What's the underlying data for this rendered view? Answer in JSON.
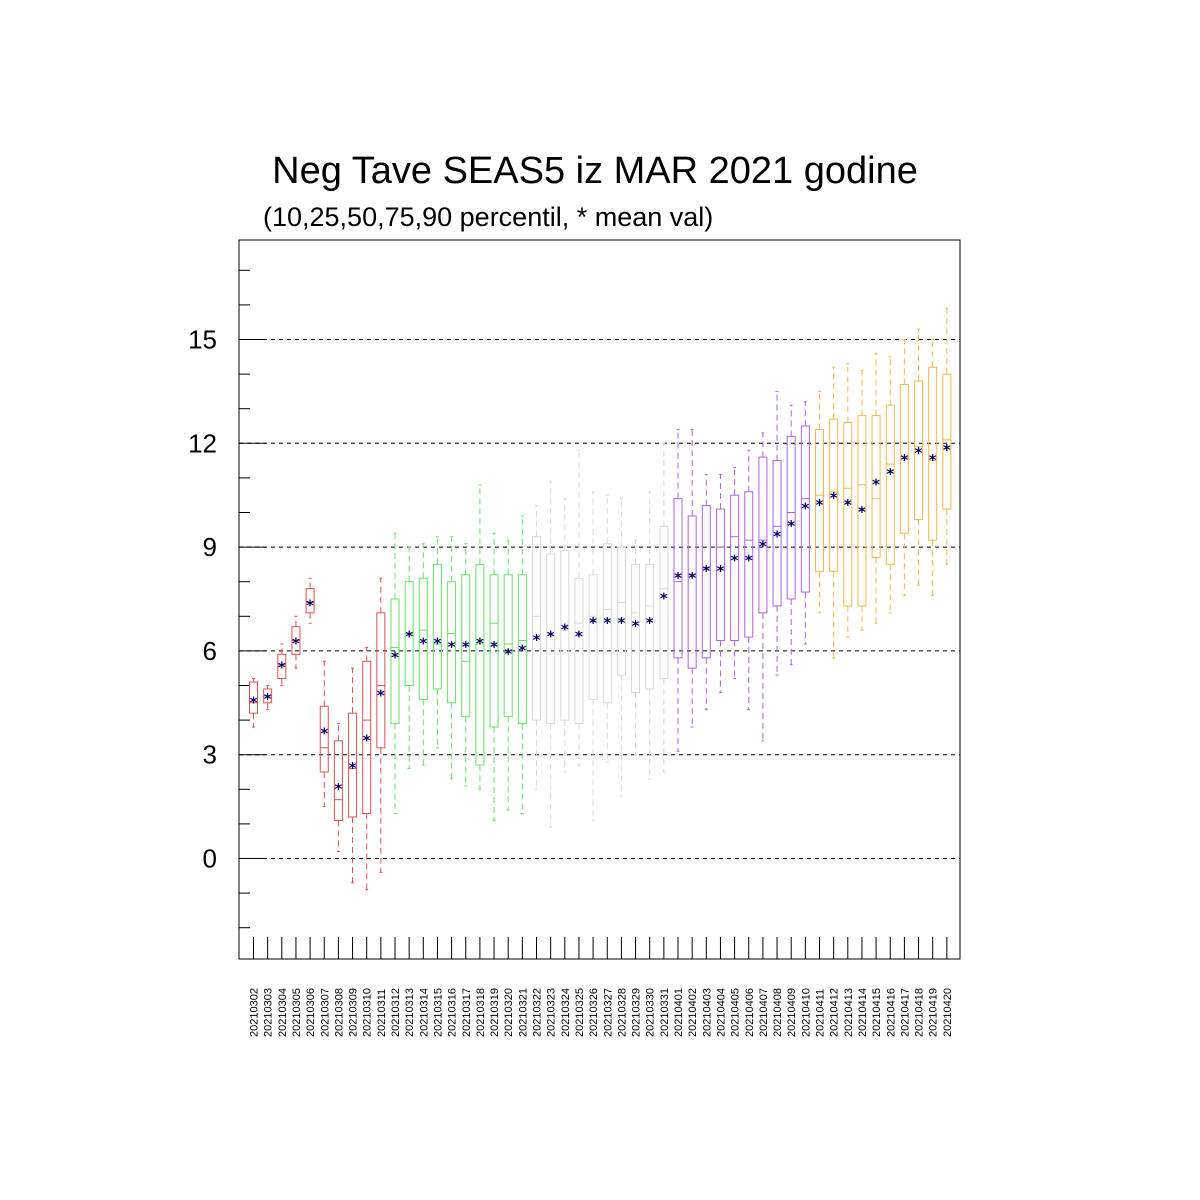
{
  "chart_data": {
    "type": "boxplot",
    "title": "Neg Tave SEAS5 iz MAR 2021 godine",
    "subtitle": "(10,25,50,75,90 percentil, * mean val)",
    "ylim": [
      -2.9,
      17.3
    ],
    "yticks": [
      0,
      3,
      6,
      9,
      12,
      15
    ],
    "grid": "horizontal dashed at major ticks",
    "categories": [
      "20210302",
      "20210303",
      "20210304",
      "20210305",
      "20210306",
      "20210307",
      "20210308",
      "20210309",
      "20210310",
      "20210311",
      "20210312",
      "20210313",
      "20210314",
      "20210315",
      "20210316",
      "20210317",
      "20210318",
      "20210319",
      "20210320",
      "20210321",
      "20210322",
      "20210323",
      "20210324",
      "20210325",
      "20210326",
      "20210327",
      "20210328",
      "20210329",
      "20210330",
      "20210331",
      "20210401",
      "20210402",
      "20210403",
      "20210404",
      "20210405",
      "20210406",
      "20210407",
      "20210408",
      "20210409",
      "20210410",
      "20210411",
      "20210412",
      "20210413",
      "20210414",
      "20210415",
      "20210416",
      "20210417",
      "20210418",
      "20210419",
      "20210420"
    ],
    "boxes": [
      {
        "p10": 3.8,
        "p25": 4.2,
        "p50": 4.5,
        "p75": 5.1,
        "p90": 5.2,
        "mean": 4.6,
        "color": "#e05050"
      },
      {
        "p10": 4.3,
        "p25": 4.5,
        "p50": 4.7,
        "p75": 4.9,
        "p90": 5.0,
        "mean": 4.7,
        "color": "#e05050"
      },
      {
        "p10": 5.0,
        "p25": 5.2,
        "p50": 5.6,
        "p75": 5.9,
        "p90": 6.2,
        "mean": 5.6,
        "color": "#e05050"
      },
      {
        "p10": 5.5,
        "p25": 5.9,
        "p50": 6.3,
        "p75": 6.7,
        "p90": 7.0,
        "mean": 6.3,
        "color": "#e05050"
      },
      {
        "p10": 6.8,
        "p25": 7.1,
        "p50": 7.4,
        "p75": 7.8,
        "p90": 8.1,
        "mean": 7.4,
        "color": "#e05050"
      },
      {
        "p10": 1.5,
        "p25": 2.5,
        "p50": 3.2,
        "p75": 4.4,
        "p90": 5.7,
        "mean": 3.7,
        "color": "#e05050"
      },
      {
        "p10": 0.2,
        "p25": 1.1,
        "p50": 1.7,
        "p75": 3.4,
        "p90": 3.9,
        "mean": 2.1,
        "color": "#e05050"
      },
      {
        "p10": -0.7,
        "p25": 1.2,
        "p50": 2.6,
        "p75": 4.2,
        "p90": 5.5,
        "mean": 2.7,
        "color": "#e05050"
      },
      {
        "p10": -0.9,
        "p25": 1.3,
        "p50": 4.0,
        "p75": 5.7,
        "p90": 6.1,
        "mean": 3.5,
        "color": "#e05050"
      },
      {
        "p10": -0.4,
        "p25": 3.2,
        "p50": 5.0,
        "p75": 7.1,
        "p90": 8.1,
        "mean": 4.8,
        "color": "#e05050"
      },
      {
        "p10": 1.3,
        "p25": 3.9,
        "p50": 6.1,
        "p75": 7.5,
        "p90": 9.4,
        "mean": 5.9,
        "color": "#66e066"
      },
      {
        "p10": 2.6,
        "p25": 5.0,
        "p50": 6.5,
        "p75": 8.0,
        "p90": 9.0,
        "mean": 6.5,
        "color": "#66e066"
      },
      {
        "p10": 2.7,
        "p25": 4.6,
        "p50": 6.6,
        "p75": 8.1,
        "p90": 9.1,
        "mean": 6.3,
        "color": "#66e066"
      },
      {
        "p10": 3.2,
        "p25": 4.9,
        "p50": 6.2,
        "p75": 8.5,
        "p90": 9.3,
        "mean": 6.3,
        "color": "#66e066"
      },
      {
        "p10": 2.3,
        "p25": 4.5,
        "p50": 6.5,
        "p75": 8.0,
        "p90": 9.3,
        "mean": 6.2,
        "color": "#66e066"
      },
      {
        "p10": 2.1,
        "p25": 4.1,
        "p50": 5.7,
        "p75": 8.2,
        "p90": 9.1,
        "mean": 6.2,
        "color": "#66e066"
      },
      {
        "p10": 2.0,
        "p25": 2.7,
        "p50": 6.2,
        "p75": 8.5,
        "p90": 10.8,
        "mean": 6.3,
        "color": "#66e066"
      },
      {
        "p10": 1.1,
        "p25": 3.8,
        "p50": 6.8,
        "p75": 8.2,
        "p90": 9.4,
        "mean": 6.2,
        "color": "#66e066"
      },
      {
        "p10": 1.4,
        "p25": 4.1,
        "p50": 6.2,
        "p75": 8.2,
        "p90": 9.2,
        "mean": 6.0,
        "color": "#66e066"
      },
      {
        "p10": 1.3,
        "p25": 3.9,
        "p50": 6.3,
        "p75": 8.2,
        "p90": 9.9,
        "mean": 6.1,
        "color": "#66e066"
      },
      {
        "p10": 2.0,
        "p25": 4.0,
        "p50": 7.0,
        "p75": 9.3,
        "p90": 10.2,
        "mean": 6.4,
        "color": "#d8d8d8"
      },
      {
        "p10": 0.9,
        "p25": 3.9,
        "p50": 6.5,
        "p75": 8.8,
        "p90": 10.9,
        "mean": 6.5,
        "color": "#d8d8d8"
      },
      {
        "p10": 2.5,
        "p25": 4.0,
        "p50": 6.6,
        "p75": 8.9,
        "p90": 10.4,
        "mean": 6.7,
        "color": "#d8d8d8"
      },
      {
        "p10": 2.7,
        "p25": 3.9,
        "p50": 6.8,
        "p75": 8.1,
        "p90": 11.8,
        "mean": 6.5,
        "color": "#d8d8d8"
      },
      {
        "p10": 1.1,
        "p25": 4.6,
        "p50": 7.0,
        "p75": 8.2,
        "p90": 10.6,
        "mean": 6.9,
        "color": "#d8d8d8"
      },
      {
        "p10": 2.8,
        "p25": 4.5,
        "p50": 7.2,
        "p75": 9.1,
        "p90": 10.5,
        "mean": 6.9,
        "color": "#d8d8d8"
      },
      {
        "p10": 1.8,
        "p25": 5.3,
        "p50": 7.4,
        "p75": 9.0,
        "p90": 10.4,
        "mean": 6.9,
        "color": "#d8d8d8"
      },
      {
        "p10": 3.0,
        "p25": 4.8,
        "p50": 7.1,
        "p75": 8.5,
        "p90": 9.2,
        "mean": 6.8,
        "color": "#d8d8d8"
      },
      {
        "p10": 2.3,
        "p25": 4.9,
        "p50": 7.3,
        "p75": 8.5,
        "p90": 10.6,
        "mean": 6.9,
        "color": "#d8d8d8"
      },
      {
        "p10": 2.5,
        "p25": 5.2,
        "p50": 7.8,
        "p75": 9.6,
        "p90": 12.0,
        "mean": 7.6,
        "color": "#d8d8d8"
      },
      {
        "p10": 3.1,
        "p25": 5.8,
        "p50": 8.0,
        "p75": 10.4,
        "p90": 12.4,
        "mean": 8.2,
        "color": "#b060e0"
      },
      {
        "p10": 3.8,
        "p25": 5.5,
        "p50": 8.2,
        "p75": 9.9,
        "p90": 12.4,
        "mean": 8.2,
        "color": "#b060e0"
      },
      {
        "p10": 4.3,
        "p25": 5.8,
        "p50": 8.4,
        "p75": 10.2,
        "p90": 11.1,
        "mean": 8.4,
        "color": "#b060e0"
      },
      {
        "p10": 4.8,
        "p25": 6.3,
        "p50": 9.0,
        "p75": 10.1,
        "p90": 11.1,
        "mean": 8.4,
        "color": "#b060e0"
      },
      {
        "p10": 5.2,
        "p25": 6.3,
        "p50": 9.3,
        "p75": 10.5,
        "p90": 11.3,
        "mean": 8.7,
        "color": "#b060e0"
      },
      {
        "p10": 4.3,
        "p25": 6.4,
        "p50": 9.2,
        "p75": 10.6,
        "p90": 11.8,
        "mean": 8.7,
        "color": "#b060e0"
      },
      {
        "p10": 3.4,
        "p25": 7.1,
        "p50": 9.2,
        "p75": 11.6,
        "p90": 12.3,
        "mean": 9.1,
        "color": "#b060e0"
      },
      {
        "p10": 5.3,
        "p25": 7.3,
        "p50": 9.6,
        "p75": 11.5,
        "p90": 13.5,
        "mean": 9.4,
        "color": "#b060e0"
      },
      {
        "p10": 5.6,
        "p25": 7.5,
        "p50": 10.0,
        "p75": 12.2,
        "p90": 13.1,
        "mean": 9.7,
        "color": "#b060e0"
      },
      {
        "p10": 6.2,
        "p25": 7.7,
        "p50": 10.4,
        "p75": 12.5,
        "p90": 13.2,
        "mean": 10.2,
        "color": "#b060e0"
      },
      {
        "p10": 7.1,
        "p25": 8.3,
        "p50": 10.5,
        "p75": 12.4,
        "p90": 13.5,
        "mean": 10.3,
        "color": "#f0b848"
      },
      {
        "p10": 5.8,
        "p25": 8.3,
        "p50": 10.6,
        "p75": 12.7,
        "p90": 14.2,
        "mean": 10.5,
        "color": "#f0b848"
      },
      {
        "p10": 6.4,
        "p25": 7.3,
        "p50": 10.7,
        "p75": 12.6,
        "p90": 14.3,
        "mean": 10.3,
        "color": "#f0b848"
      },
      {
        "p10": 6.6,
        "p25": 7.3,
        "p50": 10.8,
        "p75": 12.8,
        "p90": 14.1,
        "mean": 10.1,
        "color": "#f0b848"
      },
      {
        "p10": 6.8,
        "p25": 8.7,
        "p50": 10.4,
        "p75": 12.8,
        "p90": 14.6,
        "mean": 10.9,
        "color": "#f0b848"
      },
      {
        "p10": 7.1,
        "p25": 8.5,
        "p50": 11.4,
        "p75": 13.1,
        "p90": 14.5,
        "mean": 11.2,
        "color": "#f0b848"
      },
      {
        "p10": 7.6,
        "p25": 9.4,
        "p50": 11.6,
        "p75": 13.7,
        "p90": 15.0,
        "mean": 11.6,
        "color": "#f0b848"
      },
      {
        "p10": 7.9,
        "p25": 9.8,
        "p50": 11.9,
        "p75": 13.8,
        "p90": 15.3,
        "mean": 11.8,
        "color": "#f0b848"
      },
      {
        "p10": 7.6,
        "p25": 9.2,
        "p50": 11.5,
        "p75": 14.2,
        "p90": 15.0,
        "mean": 11.6,
        "color": "#f0b848"
      },
      {
        "p10": 8.5,
        "p25": 10.1,
        "p50": 12.1,
        "p75": 14.0,
        "p90": 15.9,
        "mean": 11.9,
        "color": "#f0b848"
      }
    ]
  }
}
